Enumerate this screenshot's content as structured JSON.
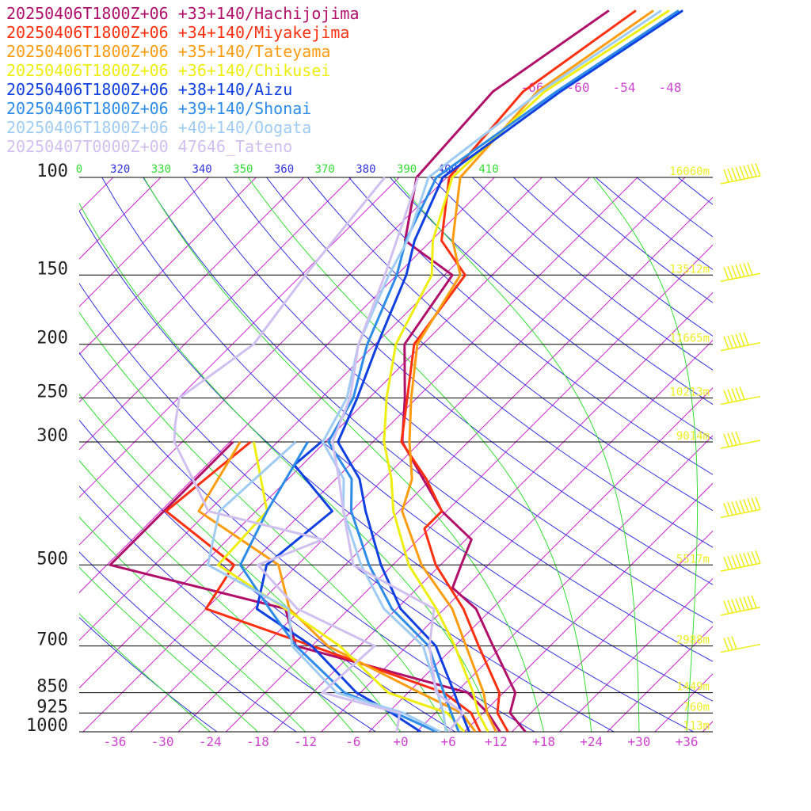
{
  "chart_data": {
    "type": "line",
    "legend": [
      {
        "label": "20250406T1800Z+06 +33+140/Hachijojima",
        "color": "#b0106a"
      },
      {
        "label": "20250406T1800Z+06 +34+140/Miyakejima",
        "color": "#ff3010"
      },
      {
        "label": "20250406T1800Z+06 +35+140/Tateyama",
        "color": "#ff9c10"
      },
      {
        "label": "20250406T1800Z+06 +36+140/Chikusei",
        "color": "#eeee10"
      },
      {
        "label": "20250406T1800Z+06 +38+140/Aizu",
        "color": "#1040e0"
      },
      {
        "label": "20250406T1800Z+06 +39+140/Shonai",
        "color": "#2c8ce8"
      },
      {
        "label": "20250406T1800Z+06 +40+140/Oogata",
        "color": "#a0ccf4"
      },
      {
        "label": "20250407T0000Z+00 47646_Tateno",
        "color": "#d0c0f0"
      }
    ],
    "pressure_levels": [
      {
        "label": "100",
        "p": 100
      },
      {
        "label": "150",
        "p": 150
      },
      {
        "label": "200",
        "p": 200
      },
      {
        "label": "250",
        "p": 250
      },
      {
        "label": "300",
        "p": 300
      },
      {
        "label": "500",
        "p": 500
      },
      {
        "label": "700",
        "p": 700
      },
      {
        "label": "850",
        "p": 850
      },
      {
        "label": "925",
        "p": 925
      },
      {
        "label": "1000",
        "p": 1000
      }
    ],
    "height_labels": [
      {
        "label": "16060m",
        "p": 100
      },
      {
        "label": "13512m",
        "p": 150
      },
      {
        "label": "11665m",
        "p": 200
      },
      {
        "label": "10213m",
        "p": 250
      },
      {
        "label": "9014m",
        "p": 300
      },
      {
        "label": "5517m",
        "p": 500
      },
      {
        "label": "2988m",
        "p": 700
      },
      {
        "label": "1449m",
        "p": 850
      },
      {
        "label": "760m",
        "p": 925
      },
      {
        "label": "113m",
        "p": 1000
      }
    ],
    "x_ticks": [
      "-36",
      "-30",
      "-24",
      "-18",
      "-12",
      "-6",
      "+0",
      "+6",
      "+12",
      "+18",
      "+24",
      "+30",
      "+36"
    ],
    "x_tick_values": [
      -36,
      -30,
      -24,
      -18,
      -12,
      -6,
      0,
      6,
      12,
      18,
      24,
      30,
      36
    ],
    "theta_labels": [
      "0",
      "320",
      "330",
      "340",
      "350",
      "360",
      "370",
      "380",
      "390",
      "400",
      "410"
    ],
    "upper_temp_labels": [
      "-66",
      "-60",
      "-54",
      "-48"
    ],
    "colors": {
      "isotherm": "#cc22cc",
      "dry_adiabat": "#3333dd",
      "moist_adiabat": "#33dd33",
      "isobar": "#000000",
      "height_label": "#eeee22",
      "wind_barb": "#eeee10",
      "tick_label": "#cc44cc"
    },
    "series": [
      {
        "name": "20250406T1800Z+06 +33+140/Hachijojima",
        "color": "#b0106a",
        "temperature": [
          [
            1000,
            15.7
          ],
          [
            925,
            11.4
          ],
          [
            850,
            9.5
          ],
          [
            700,
            0.8
          ],
          [
            600,
            -6.0
          ],
          [
            550,
            -11.6
          ],
          [
            500,
            -13.4
          ],
          [
            450,
            -15.3
          ],
          [
            400,
            -22.6
          ],
          [
            350,
            -29.0
          ],
          [
            300,
            -36.3
          ],
          [
            250,
            -41.5
          ],
          [
            200,
            -48.3
          ],
          [
            150,
            -51.0
          ],
          [
            130,
            -61.3
          ],
          [
            100,
            -67.8
          ],
          [
            70,
            -69.0
          ],
          [
            50,
            -64.6
          ]
        ],
        "dewpoint": [
          [
            1000,
            12.5
          ],
          [
            925,
            8.6
          ],
          [
            850,
            3.5
          ],
          [
            700,
            -24.0
          ],
          [
            600,
            -30.0
          ],
          [
            500,
            -57.6
          ],
          [
            300,
            -57.6
          ]
        ]
      },
      {
        "name": "20250406T1800Z+06 +34+140/Miyakejima",
        "color": "#ff3010",
        "temperature": [
          [
            1000,
            13.5
          ],
          [
            925,
            9.8
          ],
          [
            850,
            7.5
          ],
          [
            700,
            -1.0
          ],
          [
            600,
            -7.6
          ],
          [
            500,
            -16.6
          ],
          [
            430,
            -22.6
          ],
          [
            400,
            -22.6
          ],
          [
            350,
            -28.6
          ],
          [
            300,
            -36.4
          ],
          [
            250,
            -41.2
          ],
          [
            200,
            -47.1
          ],
          [
            150,
            -49.4
          ],
          [
            130,
            -56.7
          ],
          [
            100,
            -63.7
          ],
          [
            70,
            -65.2
          ],
          [
            50,
            -61.2
          ]
        ],
        "dewpoint": [
          [
            1000,
            10.0
          ],
          [
            925,
            6.5
          ],
          [
            850,
            0.5
          ],
          [
            700,
            -22.0
          ],
          [
            600,
            -40.0
          ],
          [
            500,
            -42.0
          ],
          [
            400,
            -57.3
          ],
          [
            300,
            -55.4
          ]
        ]
      },
      {
        "name": "20250406T1800Z+06 +35+140/Tateyama",
        "color": "#ff9c10",
        "temperature": [
          [
            1000,
            12.0
          ],
          [
            925,
            8.5
          ],
          [
            850,
            5.5
          ],
          [
            700,
            -2.6
          ],
          [
            600,
            -9.0
          ],
          [
            500,
            -18.4
          ],
          [
            400,
            -27.6
          ],
          [
            350,
            -30.4
          ],
          [
            300,
            -35.4
          ],
          [
            250,
            -40.7
          ],
          [
            200,
            -46.7
          ],
          [
            150,
            -50.0
          ],
          [
            130,
            -55.3
          ],
          [
            100,
            -62.3
          ],
          [
            70,
            -63.4
          ],
          [
            50,
            -59.0
          ]
        ],
        "dewpoint": [
          [
            1000,
            9.4
          ],
          [
            925,
            5.3
          ],
          [
            850,
            -2.5
          ],
          [
            700,
            -20.0
          ],
          [
            600,
            -29.5
          ],
          [
            500,
            -36.4
          ],
          [
            400,
            -53.2
          ],
          [
            300,
            -56.7
          ]
        ]
      },
      {
        "name": "20250406T1800Z+06 +36+140/Chikusei",
        "color": "#eeee10",
        "temperature": [
          [
            1000,
            11.0
          ],
          [
            925,
            7.4
          ],
          [
            850,
            4.2
          ],
          [
            700,
            -4.0
          ],
          [
            600,
            -11.0
          ],
          [
            500,
            -20.0
          ],
          [
            400,
            -28.7
          ],
          [
            350,
            -33.0
          ],
          [
            300,
            -38.6
          ],
          [
            250,
            -43.8
          ],
          [
            200,
            -49.4
          ],
          [
            150,
            -53.6
          ],
          [
            130,
            -57.8
          ],
          [
            100,
            -63.3
          ],
          [
            70,
            -62.5
          ],
          [
            50,
            -57.0
          ]
        ],
        "dewpoint": [
          [
            1000,
            8.0
          ],
          [
            925,
            3.5
          ],
          [
            850,
            -6.5
          ],
          [
            700,
            -18.5
          ],
          [
            600,
            -30.0
          ],
          [
            500,
            -44.0
          ],
          [
            400,
            -44.6
          ],
          [
            300,
            -55.0
          ]
        ]
      },
      {
        "name": "20250406T1800Z+06 +38+140/Aizu",
        "color": "#1040e0",
        "temperature": [
          [
            1000,
            8.6
          ],
          [
            925,
            5.3
          ],
          [
            850,
            1.8
          ],
          [
            700,
            -6.4
          ],
          [
            600,
            -15.5
          ],
          [
            500,
            -23.5
          ],
          [
            400,
            -32.2
          ],
          [
            350,
            -37.0
          ],
          [
            300,
            -44.4
          ],
          [
            250,
            -47.5
          ],
          [
            200,
            -51.7
          ],
          [
            150,
            -56.8
          ],
          [
            130,
            -60.1
          ],
          [
            100,
            -64.5
          ],
          [
            70,
            -60.5
          ],
          [
            50,
            -55.3
          ]
        ],
        "dewpoint": [
          [
            1000,
            2.5
          ],
          [
            925,
            -3.5
          ],
          [
            850,
            -10.5
          ],
          [
            700,
            -22.0
          ],
          [
            600,
            -33.6
          ],
          [
            500,
            -37.9
          ],
          [
            400,
            -36.4
          ],
          [
            330,
            -47.0
          ],
          [
            300,
            -46.5
          ]
        ]
      },
      {
        "name": "20250406T1800Z+06 +39+140/Shonai",
        "color": "#2c8ce8",
        "temperature": [
          [
            1000,
            7.3
          ],
          [
            925,
            4.0
          ],
          [
            850,
            0.5
          ],
          [
            700,
            -7.3
          ],
          [
            600,
            -16.6
          ],
          [
            500,
            -25.0
          ],
          [
            400,
            -34.0
          ],
          [
            350,
            -38.0
          ],
          [
            300,
            -45.6
          ],
          [
            250,
            -48.0
          ],
          [
            200,
            -53.0
          ],
          [
            150,
            -58.0
          ],
          [
            130,
            -61.2
          ],
          [
            100,
            -65.3
          ],
          [
            70,
            -61.0
          ],
          [
            50,
            -55.8
          ]
        ],
        "dewpoint": [
          [
            1000,
            4.5
          ],
          [
            925,
            -3.0
          ],
          [
            850,
            -12.0
          ],
          [
            700,
            -24.0
          ],
          [
            600,
            -32.0
          ],
          [
            500,
            -41.2
          ],
          [
            400,
            -44.6
          ],
          [
            300,
            -48.2
          ]
        ]
      },
      {
        "name": "20250406T1800Z+06 +40+140/Oogata",
        "color": "#a0ccf4",
        "temperature": [
          [
            1000,
            5.7
          ],
          [
            925,
            3.0
          ],
          [
            850,
            -0.3
          ],
          [
            700,
            -8.0
          ],
          [
            600,
            -17.6
          ],
          [
            500,
            -26.0
          ],
          [
            400,
            -35.0
          ],
          [
            350,
            -39.0
          ],
          [
            300,
            -46.3
          ],
          [
            250,
            -48.8
          ],
          [
            200,
            -54.1
          ],
          [
            150,
            -59.0
          ],
          [
            130,
            -61.0
          ],
          [
            100,
            -66.3
          ],
          [
            70,
            -63.0
          ],
          [
            50,
            -58.0
          ]
        ],
        "dewpoint": [
          [
            1000,
            5.0
          ],
          [
            925,
            -2.0
          ],
          [
            850,
            -13.0
          ],
          [
            700,
            -24.5
          ],
          [
            600,
            -29.6
          ],
          [
            500,
            -45.3
          ],
          [
            400,
            -50.6
          ],
          [
            300,
            -49.7
          ]
        ]
      },
      {
        "name": "20250407T0000Z+00 47646_Tateno",
        "color": "#d0c0f0",
        "temperature": [
          [
            1000,
            6.0
          ],
          [
            925,
            5.5
          ],
          [
            850,
            -0.5
          ],
          [
            700,
            -7.2
          ],
          [
            600,
            -11.3
          ],
          [
            500,
            -27.0
          ],
          [
            400,
            -35.0
          ],
          [
            350,
            -39.6
          ],
          [
            300,
            -45.1
          ],
          [
            250,
            -48.4
          ],
          [
            200,
            -54.1
          ],
          [
            150,
            -59.5
          ],
          [
            100,
            -67.6
          ]
        ],
        "dewpoint": [
          [
            1000,
            -0.5
          ],
          [
            925,
            -2.5
          ],
          [
            850,
            -14.8
          ],
          [
            700,
            -14.1
          ],
          [
            600,
            -28.5
          ],
          [
            500,
            -39.0
          ],
          [
            450,
            -34.0
          ],
          [
            400,
            -52.0
          ],
          [
            350,
            -58.0
          ],
          [
            300,
            -65.0
          ],
          [
            280,
            -67.0
          ],
          [
            250,
            -69.9
          ],
          [
            200,
            -67.3
          ],
          [
            150,
            -69.5
          ],
          [
            100,
            -71.8
          ]
        ]
      }
    ],
    "wind_barbs": [
      {
        "p": 100,
        "speed_kt": 85
      },
      {
        "p": 150,
        "speed_kt": 70
      },
      {
        "p": 200,
        "speed_kt": 55
      },
      {
        "p": 250,
        "speed_kt": 45
      },
      {
        "p": 300,
        "speed_kt": 40
      },
      {
        "p": 400,
        "speed_kt": 90
      },
      {
        "p": 500,
        "speed_kt": 85
      },
      {
        "p": 600,
        "speed_kt": 75
      },
      {
        "p": 700,
        "speed_kt": 25
      }
    ]
  }
}
